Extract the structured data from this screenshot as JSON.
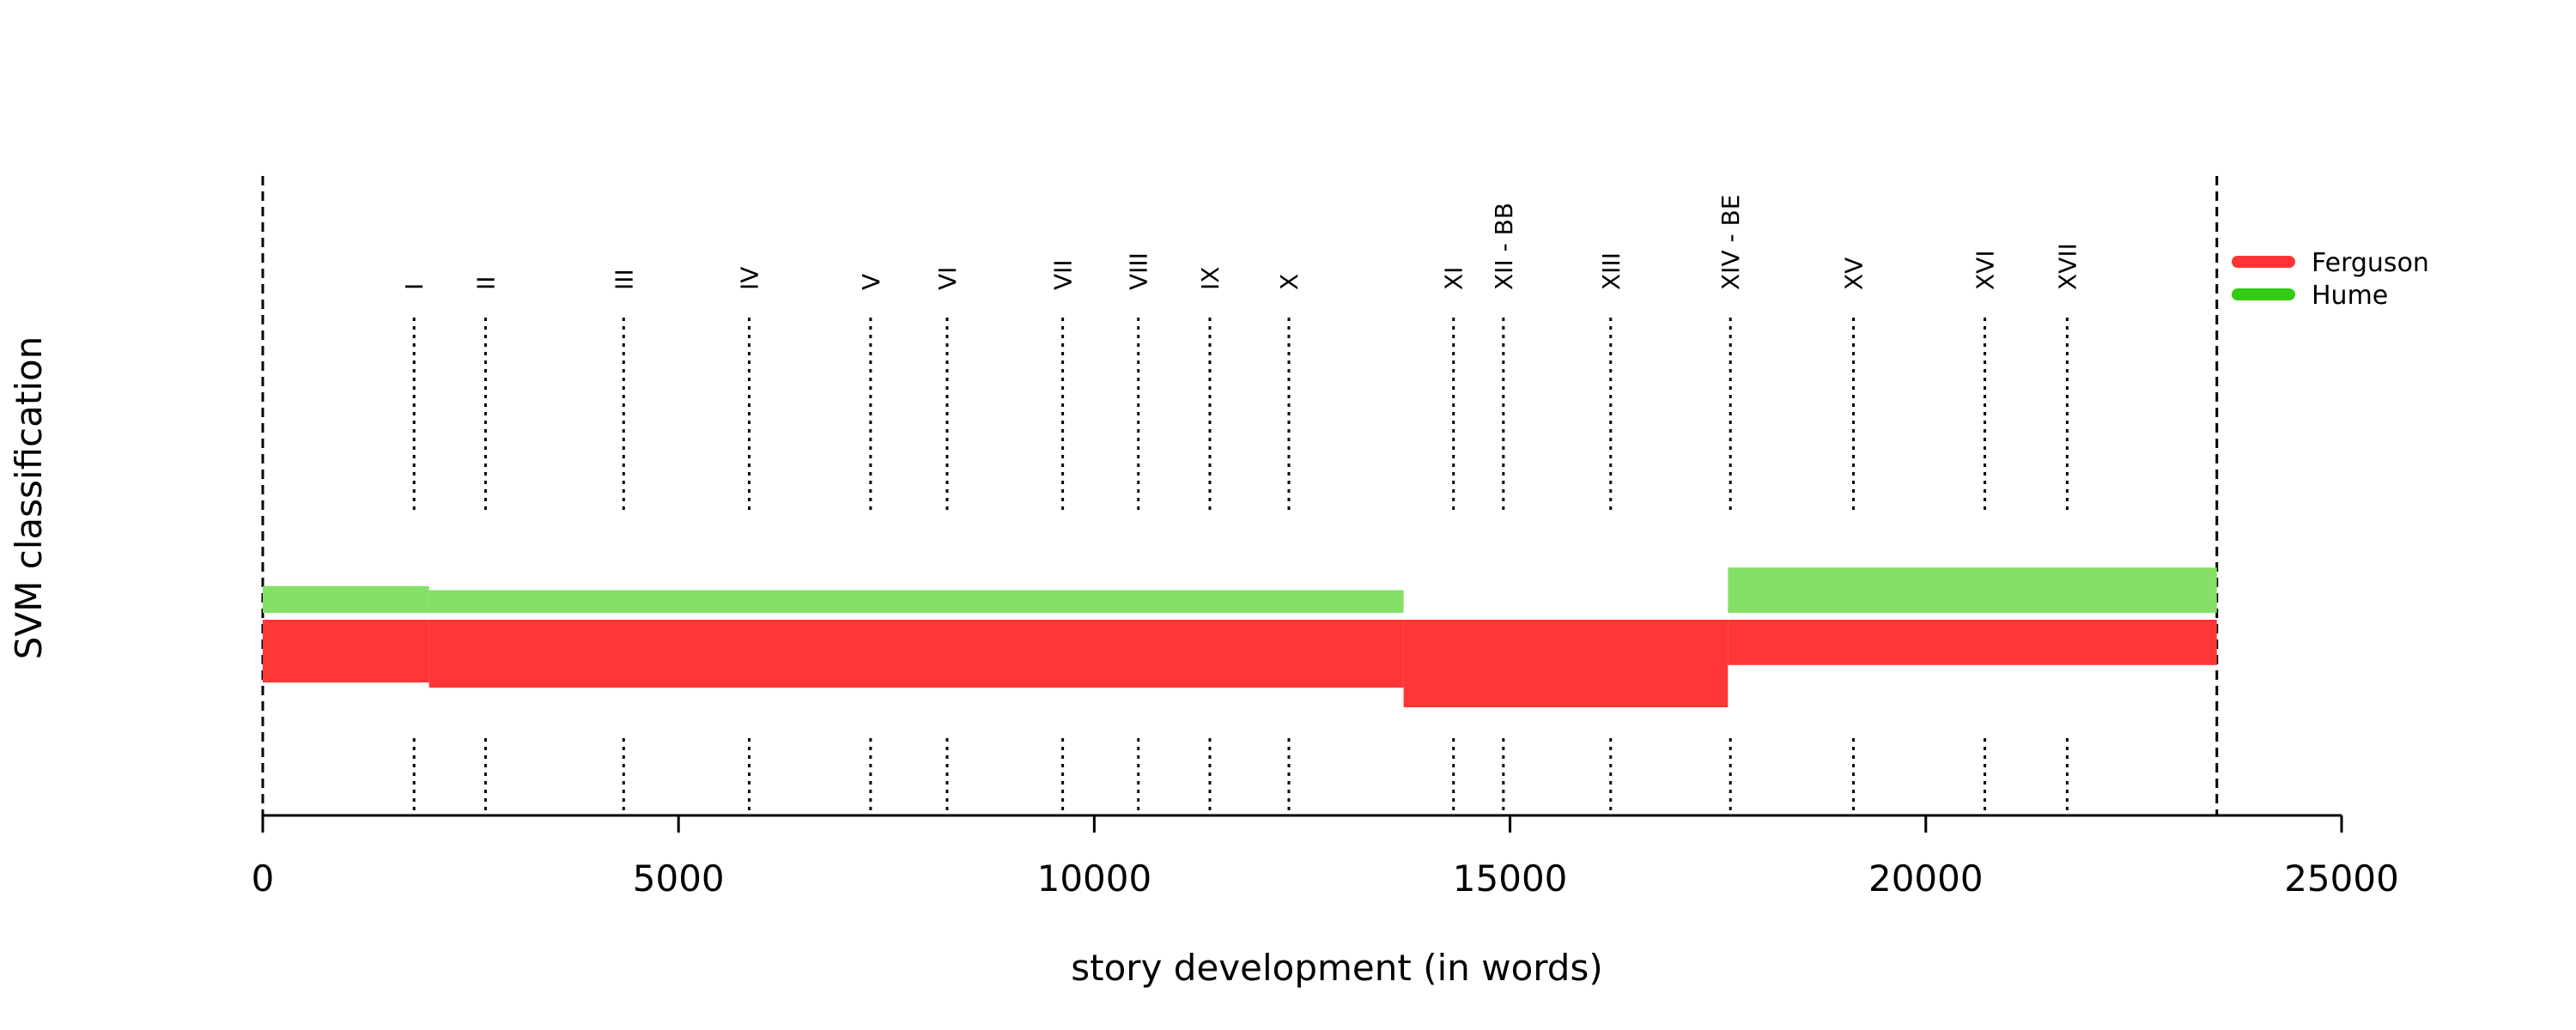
{
  "chart_data": {
    "type": "bar",
    "ylabel": "SVM classification",
    "xlabel": "story development (in words)",
    "xlim": [
      0,
      25000
    ],
    "x_ticks": [
      0,
      5000,
      10000,
      15000,
      20000,
      25000
    ],
    "x_tick_labels": [
      "0",
      "5000",
      "10000",
      "15000",
      "20000",
      "25000"
    ],
    "boundaries": [
      0,
      23500
    ],
    "sections": [
      {
        "label": "I",
        "x": 1820
      },
      {
        "label": "II",
        "x": 2680
      },
      {
        "label": "III",
        "x": 4340
      },
      {
        "label": "IV",
        "x": 5850
      },
      {
        "label": "V",
        "x": 7310
      },
      {
        "label": "VI",
        "x": 8230
      },
      {
        "label": "VII",
        "x": 9620
      },
      {
        "label": "VIII",
        "x": 10530
      },
      {
        "label": "IX",
        "x": 11390
      },
      {
        "label": "X",
        "x": 12340
      },
      {
        "label": "XI",
        "x": 14320
      },
      {
        "label": "XII - BB",
        "x": 14920
      },
      {
        "label": "XIII",
        "x": 16210
      },
      {
        "label": "XIV - BE",
        "x": 17650
      },
      {
        "label": "XV",
        "x": 19130
      },
      {
        "label": "XVI",
        "x": 20710
      },
      {
        "label": "XVII",
        "x": 21700
      }
    ],
    "series": [
      {
        "name": "Ferguson",
        "color": "#ff3333",
        "segments": [
          {
            "start": 0,
            "end": 2000,
            "value": 0.61
          },
          {
            "start": 2000,
            "end": 13720,
            "value": 0.66
          },
          {
            "start": 13720,
            "end": 17620,
            "value": 0.85
          },
          {
            "start": 17620,
            "end": 23500,
            "value": 0.44
          }
        ]
      },
      {
        "name": "Hume",
        "color": "#33cc11",
        "segments": [
          {
            "start": 0,
            "end": 2000,
            "value": 0.26
          },
          {
            "start": 2000,
            "end": 13720,
            "value": 0.22
          },
          {
            "start": 13720,
            "end": 17620,
            "value": 0.0
          },
          {
            "start": 17620,
            "end": 23500,
            "value": 0.44
          }
        ]
      }
    ],
    "legend": {
      "position": "right",
      "entries": [
        {
          "label": "Ferguson",
          "color": "#ff3333"
        },
        {
          "label": "Hume",
          "color": "#33cc11"
        }
      ]
    }
  }
}
